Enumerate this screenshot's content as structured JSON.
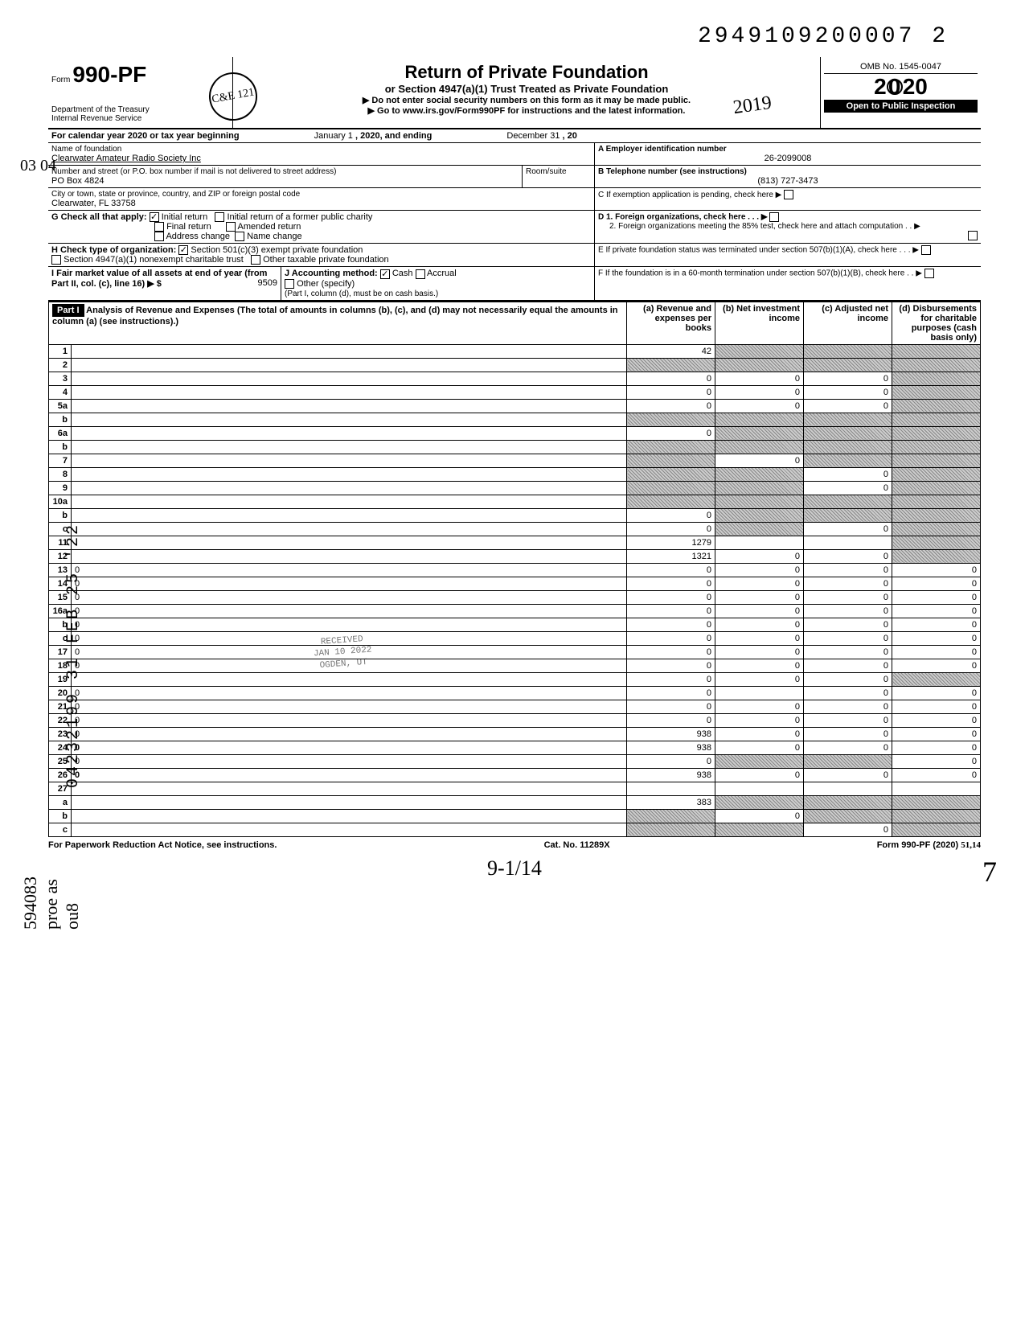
{
  "stamp_number": "2949109200007 2",
  "form": {
    "number_prefix": "Form",
    "number": "990-PF",
    "agency1": "Department of the Treasury",
    "agency2": "Internal Revenue Service",
    "title": "Return of Private Foundation",
    "subtitle": "or Section 4947(a)(1) Trust Treated as Private Foundation",
    "instr1": "▶ Do not enter social security numbers on this form as it may be made public.",
    "instr2": "▶ Go to www.irs.gov/Form990PF for instructions and the latest information.",
    "omb": "OMB No. 1545-0047",
    "year": "2020",
    "open": "Open to Public Inspection"
  },
  "stamp_circle": "C&E 121",
  "hand_year": "2019",
  "hand_init": "03  04",
  "calendar": {
    "line": "For calendar year 2020 or tax year beginning",
    "begin": "January 1",
    "mid": ", 2020, and ending",
    "end": "December 31",
    "tail": ", 20"
  },
  "id": {
    "name_label": "Name of foundation",
    "name": "Clearwater Amateur Radio Society Inc",
    "ein_label": "A  Employer identification number",
    "ein": "26-2099008",
    "addr_label": "Number and street (or P.O. box number if mail is not delivered to street address)",
    "room_label": "Room/suite",
    "addr": "PO Box 4824",
    "tel_label": "B  Telephone number (see instructions)",
    "tel": "(813) 727-3473",
    "city_label": "City or town, state or province, country, and ZIP or foreign postal code",
    "city": "Clearwater, FL 33758",
    "c_label": "C  If exemption application is pending, check here ▶"
  },
  "g": {
    "label": "G  Check all that apply:",
    "opts": [
      "Initial return",
      "Final return",
      "Address change",
      "Initial return of a former public charity",
      "Amended return",
      "Name change"
    ],
    "checked": [
      true,
      false,
      false,
      false,
      false,
      false
    ]
  },
  "d": {
    "l1": "D  1. Foreign organizations, check here  .   .   . ▶",
    "l2": "2. Foreign organizations meeting the 85% test, check here and attach computation   .   . ▶"
  },
  "h": {
    "label": "H  Check type of organization:",
    "o1": "Section 501(c)(3) exempt private foundation",
    "o2": "Section 4947(a)(1) nonexempt charitable trust",
    "o3": "Other taxable private foundation",
    "checked": [
      true,
      false,
      false
    ]
  },
  "e": {
    "text": "E  If private foundation status was terminated under section 507(b)(1)(A), check here   .   .   . ▶"
  },
  "i": {
    "label": "I   Fair market value of all assets at end of year  (from Part II, col. (c), line 16) ▶ $",
    "value": "9509"
  },
  "j": {
    "label": "J  Accounting method:",
    "o1": "Cash",
    "o2": "Accrual",
    "o3": "Other (specify)",
    "note": "(Part I, column (d), must be on cash basis.)",
    "checked": [
      true,
      false,
      false
    ]
  },
  "f": {
    "text": "F  If the foundation is in a 60-month termination under section 507(b)(1)(B), check here   .   . ▶"
  },
  "part1": {
    "label": "Part I",
    "title": "Analysis of Revenue and Expenses (The total of amounts in columns (b), (c), and (d) may not necessarily equal the amounts in column (a) (see instructions).)",
    "cols": [
      "(a) Revenue and expenses per books",
      "(b) Net investment income",
      "(c) Adjusted net income",
      "(d) Disbursements for charitable purposes (cash basis only)"
    ]
  },
  "side_labels": {
    "rev": "Revenue",
    "oae": "Operating and Administrative Expenses"
  },
  "side_code1": "04232199 31 FEB 25 '22",
  "side_code2": "594083 proe as ou8",
  "rows": [
    {
      "n": "1",
      "d": "",
      "a": "42",
      "b": "",
      "c": "",
      "sb": true,
      "sc": true,
      "sd": true
    },
    {
      "n": "2",
      "d": "",
      "a": "",
      "b": "",
      "c": "",
      "sa": true,
      "sb": true,
      "sc": true,
      "sd": true
    },
    {
      "n": "3",
      "d": "",
      "a": "0",
      "b": "0",
      "c": "0",
      "sd": true
    },
    {
      "n": "4",
      "d": "",
      "a": "0",
      "b": "0",
      "c": "0",
      "sd": true
    },
    {
      "n": "5a",
      "d": "",
      "a": "0",
      "b": "0",
      "c": "0",
      "sd": true
    },
    {
      "n": "b",
      "d": "",
      "a": "",
      "b": "",
      "c": "",
      "it": true,
      "sa": true,
      "sb": true,
      "sc": true,
      "sd": true
    },
    {
      "n": "6a",
      "d": "",
      "a": "0",
      "b": "",
      "c": "",
      "sb": true,
      "sc": true,
      "sd": true
    },
    {
      "n": "b",
      "d": "",
      "a": "",
      "b": "",
      "c": "",
      "it": true,
      "sa": true,
      "sb": true,
      "sc": true,
      "sd": true
    },
    {
      "n": "7",
      "d": "",
      "a": "",
      "b": "0",
      "c": "",
      "sa": true,
      "sc": true,
      "sd": true
    },
    {
      "n": "8",
      "d": "",
      "a": "",
      "b": "",
      "c": "0",
      "sa": true,
      "sb": true,
      "sd": true
    },
    {
      "n": "9",
      "d": "",
      "a": "",
      "b": "",
      "c": "0",
      "sa": true,
      "sb": true,
      "sd": true
    },
    {
      "n": "10a",
      "d": "",
      "a": "",
      "b": "",
      "c": "",
      "sa": true,
      "sb": true,
      "sc": true,
      "sd": true
    },
    {
      "n": "b",
      "d": "",
      "a": "0",
      "b": "",
      "c": "",
      "it": true,
      "sb": true,
      "sc": true,
      "sd": true
    },
    {
      "n": "c",
      "d": "",
      "a": "0",
      "b": "",
      "c": "0",
      "sb": true,
      "sd": true
    },
    {
      "n": "11",
      "d": "",
      "a": "1279",
      "b": "",
      "c": "",
      "sd": true
    },
    {
      "n": "12",
      "d": "",
      "a": "1321",
      "b": "0",
      "c": "0",
      "bold": true,
      "sd": true
    },
    {
      "n": "13",
      "d": "0",
      "a": "0",
      "b": "0",
      "c": "0"
    },
    {
      "n": "14",
      "d": "0",
      "a": "0",
      "b": "0",
      "c": "0"
    },
    {
      "n": "15",
      "d": "0",
      "a": "0",
      "b": "0",
      "c": "0"
    },
    {
      "n": "16a",
      "d": "0",
      "a": "0",
      "b": "0",
      "c": "0"
    },
    {
      "n": "b",
      "d": "0",
      "a": "0",
      "b": "0",
      "c": "0"
    },
    {
      "n": "c",
      "d": "0",
      "a": "0",
      "b": "0",
      "c": "0"
    },
    {
      "n": "17",
      "d": "0",
      "a": "0",
      "b": "0",
      "c": "0"
    },
    {
      "n": "18",
      "d": "0",
      "a": "0",
      "b": "0",
      "c": "0"
    },
    {
      "n": "19",
      "d": "",
      "a": "0",
      "b": "0",
      "c": "0",
      "sd": true
    },
    {
      "n": "20",
      "d": "0",
      "a": "0",
      "b": "",
      "c": "0"
    },
    {
      "n": "21",
      "d": "0",
      "a": "0",
      "b": "0",
      "c": "0"
    },
    {
      "n": "22",
      "d": "0",
      "a": "0",
      "b": "0",
      "c": "0"
    },
    {
      "n": "23",
      "d": "0",
      "a": "938",
      "b": "0",
      "c": "0"
    },
    {
      "n": "24",
      "d": "0",
      "a": "938",
      "b": "0",
      "c": "0",
      "bold": true
    },
    {
      "n": "25",
      "d": "0",
      "a": "0",
      "b": "",
      "c": "",
      "sb": true,
      "sc": true
    },
    {
      "n": "26",
      "d": "0",
      "a": "938",
      "b": "0",
      "c": "0",
      "bold": true
    },
    {
      "n": "27",
      "d": "",
      "a": "",
      "b": "",
      "c": ""
    },
    {
      "n": "a",
      "d": "",
      "a": "383",
      "b": "",
      "c": "",
      "bold": true,
      "sb": true,
      "sc": true,
      "sd": true
    },
    {
      "n": "b",
      "d": "",
      "a": "",
      "b": "0",
      "c": "",
      "bold": true,
      "sa": true,
      "sc": true,
      "sd": true
    },
    {
      "n": "c",
      "d": "",
      "a": "",
      "b": "",
      "c": "0",
      "bold": true,
      "sa": true,
      "sb": true,
      "sd": true
    }
  ],
  "rec_stamp": {
    "l1": "RECEIVED",
    "l2": "JAN 10 2022",
    "l3": "OGDEN, UT"
  },
  "footer": {
    "left": "For Paperwork Reduction Act Notice, see instructions.",
    "mid": "Cat. No. 11289X",
    "right": "Form 990-PF (2020)",
    "hand": "51,14"
  },
  "hand_bottom": "9-1/14",
  "big7": "7"
}
